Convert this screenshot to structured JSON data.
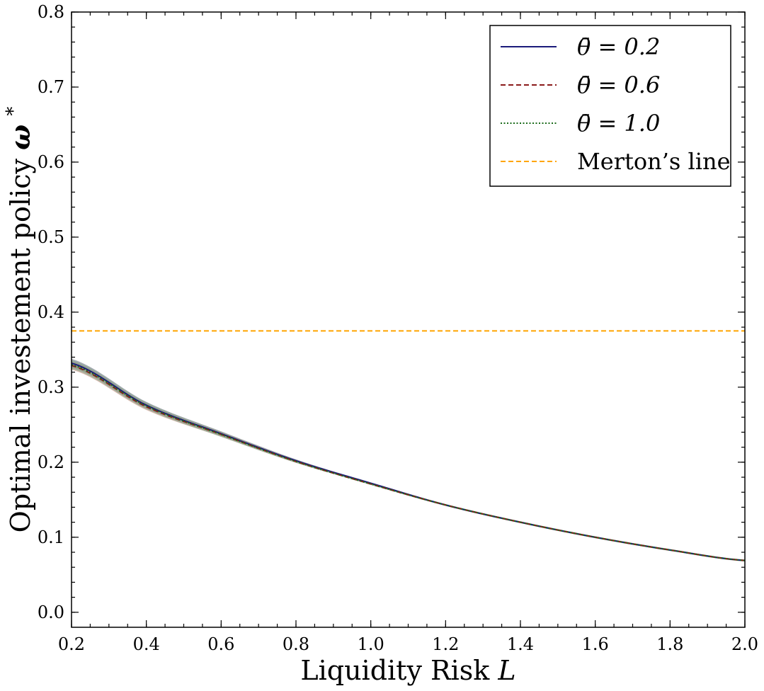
{
  "chart_data": {
    "type": "line",
    "xlabel": "Liquidity Risk",
    "xlabel_symbol": "L",
    "ylabel": "Optimal investement policy",
    "ylabel_symbol": "ω",
    "ylabel_superscript": "*",
    "xlim": [
      0.2,
      2.0
    ],
    "ylim": [
      -0.02,
      0.8
    ],
    "x_ticks": [
      "0.2",
      "0.4",
      "0.6",
      "0.8",
      "1.0",
      "1.2",
      "1.4",
      "1.6",
      "1.8",
      "2.0"
    ],
    "y_ticks": [
      "0.0",
      "0.1",
      "0.2",
      "0.3",
      "0.4",
      "0.5",
      "0.6",
      "0.7",
      "0.8"
    ],
    "grid": false,
    "legend_position": "top-right",
    "x": [
      0.2,
      0.4,
      0.6,
      0.8,
      1.0,
      1.2,
      1.4,
      1.6,
      1.8,
      2.0
    ],
    "series": [
      {
        "name": "θ̄ = 0.2",
        "color": "#1a1a7a",
        "style": "solid",
        "values": [
          0.332,
          0.276,
          0.238,
          0.202,
          0.172,
          0.143,
          0.12,
          0.1,
          0.083,
          0.069
        ],
        "band_color": "#5a6470"
      },
      {
        "name": "θ̄ = 0.6",
        "color": "#8b1a1a",
        "style": "dashed",
        "values": [
          0.329,
          0.274,
          0.237,
          0.201,
          0.171,
          0.143,
          0.12,
          0.1,
          0.083,
          0.069
        ],
        "band_color": "#c98a7a"
      },
      {
        "name": "θ̄ = 1.0",
        "color": "#1a6b1a",
        "style": "dotted",
        "values": [
          0.33,
          0.275,
          0.237,
          0.201,
          0.171,
          0.143,
          0.12,
          0.1,
          0.083,
          0.069
        ],
        "band_color": "#7fa88a"
      },
      {
        "name": "Merton’s line",
        "color": "#ffa500",
        "style": "dashed",
        "values": [
          0.375,
          0.375,
          0.375,
          0.375,
          0.375,
          0.375,
          0.375,
          0.375,
          0.375,
          0.375
        ]
      }
    ]
  }
}
